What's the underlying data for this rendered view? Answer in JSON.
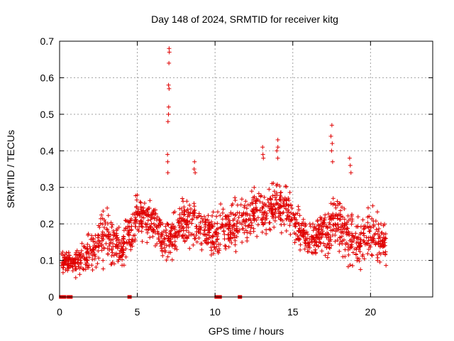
{
  "chart_data": {
    "type": "scatter",
    "title": "Day 148 of 2024, SRMTID for receiver kitg",
    "xlabel": "GPS time / hours",
    "ylabel": "SRMTID / TECUs",
    "xlim": [
      0,
      24
    ],
    "ylim": [
      0,
      0.7
    ],
    "x_ticks": [
      0,
      5,
      10,
      15,
      20
    ],
    "y_ticks": [
      0,
      0.1,
      0.2,
      0.3,
      0.4,
      0.5,
      0.6,
      0.7
    ],
    "x_tick_labels": [
      "0",
      "5",
      "10",
      "15",
      "20"
    ],
    "y_tick_labels": [
      "0",
      "0.1",
      "0.2",
      "0.3",
      "0.4",
      "0.5",
      "0.6",
      "0.7"
    ],
    "grid": true,
    "marker": "+",
    "color": "#e00000",
    "series": [
      {
        "name": "SRMTID",
        "x_range": [
          0.1,
          21.0
        ],
        "envelope_note": "estimated centre/spread per hour, values in TECU",
        "hour_centres": [
          0.1,
          0.09,
          0.12,
          0.17,
          0.13,
          0.22,
          0.2,
          0.15,
          0.21,
          0.19,
          0.17,
          0.19,
          0.21,
          0.23,
          0.26,
          0.22,
          0.14,
          0.18,
          0.2,
          0.15,
          0.17,
          0.15
        ],
        "hour_spreads": [
          0.03,
          0.03,
          0.06,
          0.07,
          0.05,
          0.06,
          0.05,
          0.06,
          0.07,
          0.06,
          0.06,
          0.06,
          0.07,
          0.07,
          0.07,
          0.06,
          0.05,
          0.07,
          0.08,
          0.06,
          0.08,
          0.05
        ]
      }
    ],
    "spikes": [
      {
        "x": 7.0,
        "values": [
          0.68,
          0.67,
          0.64,
          0.58,
          0.57,
          0.52,
          0.5,
          0.48,
          0.39,
          0.37,
          0.34
        ]
      },
      {
        "x": 17.5,
        "values": [
          0.47,
          0.44,
          0.42,
          0.4,
          0.37
        ]
      },
      {
        "x": 14.0,
        "values": [
          0.43,
          0.41,
          0.4,
          0.38
        ]
      },
      {
        "x": 13.1,
        "values": [
          0.41,
          0.39,
          0.38
        ]
      },
      {
        "x": 8.7,
        "values": [
          0.37,
          0.35,
          0.34
        ]
      },
      {
        "x": 18.7,
        "values": [
          0.38,
          0.36,
          0.34
        ]
      }
    ],
    "zero_markers": [
      0.1,
      0.3,
      0.6,
      0.7,
      4.5,
      10.1,
      10.3,
      11.6
    ]
  }
}
